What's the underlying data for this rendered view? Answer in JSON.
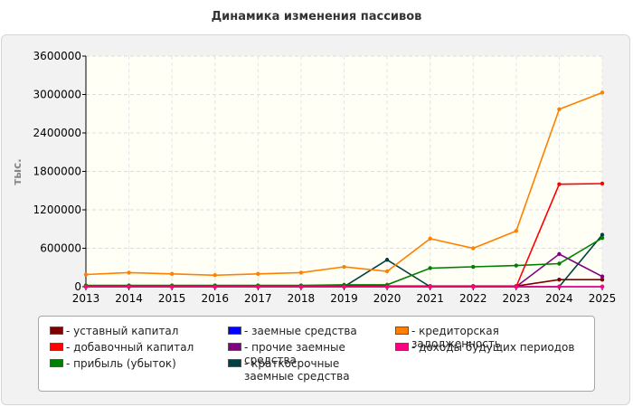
{
  "page": {
    "title": "Динамика изменения пассивов"
  },
  "chart_data": {
    "type": "line",
    "title": "Динамика изменения пассивов",
    "xlabel": "",
    "ylabel": "тыс.",
    "ylim": [
      0,
      3600000
    ],
    "yticks": [
      "0",
      "600000",
      "1200000",
      "1800000",
      "2400000",
      "3000000",
      "3600000"
    ],
    "yticks_values": [
      0,
      600000,
      1200000,
      1800000,
      2400000,
      3000000,
      3600000
    ],
    "categories": [
      "2013",
      "2014",
      "2015",
      "2016",
      "2017",
      "2018",
      "2019",
      "2020",
      "2021",
      "2022",
      "2023",
      "2024",
      "2025"
    ],
    "grid": true,
    "legend_position": "bottom",
    "series": [
      {
        "name": "- уставный капитал",
        "color": "#7b0000",
        "values": [
          10000,
          10000,
          10000,
          10000,
          10000,
          10000,
          10000,
          10000,
          10000,
          10000,
          10000,
          110000,
          110000
        ]
      },
      {
        "name": "- добавочный капитал",
        "color": "#ff0000",
        "values": [
          0,
          0,
          0,
          0,
          0,
          0,
          0,
          0,
          0,
          0,
          0,
          1600000,
          1610000
        ]
      },
      {
        "name": "- прибыль (убыток)",
        "color": "#008000",
        "values": [
          20000,
          20000,
          20000,
          20000,
          20000,
          20000,
          30000,
          30000,
          290000,
          310000,
          330000,
          360000,
          760000
        ]
      },
      {
        "name": "- заемные средства",
        "color": "#0000ff",
        "values": [
          0,
          0,
          0,
          0,
          0,
          0,
          0,
          0,
          0,
          0,
          0,
          0,
          0
        ]
      },
      {
        "name": "- прочие заемные средства",
        "color": "#800080",
        "values": [
          0,
          0,
          0,
          0,
          0,
          0,
          0,
          0,
          0,
          0,
          0,
          510000,
          160000
        ]
      },
      {
        "name": "- краткосрочные заемные средства",
        "color": "#004040",
        "values": [
          0,
          0,
          0,
          0,
          0,
          0,
          0,
          420000,
          0,
          0,
          0,
          0,
          810000
        ]
      },
      {
        "name": "- кредиторская задолженность",
        "color": "#ff8000",
        "values": [
          190000,
          220000,
          200000,
          180000,
          200000,
          220000,
          310000,
          240000,
          750000,
          600000,
          870000,
          2770000,
          3030000
        ]
      },
      {
        "name": "- доходы будущих периодов",
        "color": "#ff0080",
        "values": [
          0,
          0,
          0,
          0,
          0,
          0,
          0,
          0,
          0,
          0,
          0,
          0,
          0
        ]
      }
    ]
  }
}
